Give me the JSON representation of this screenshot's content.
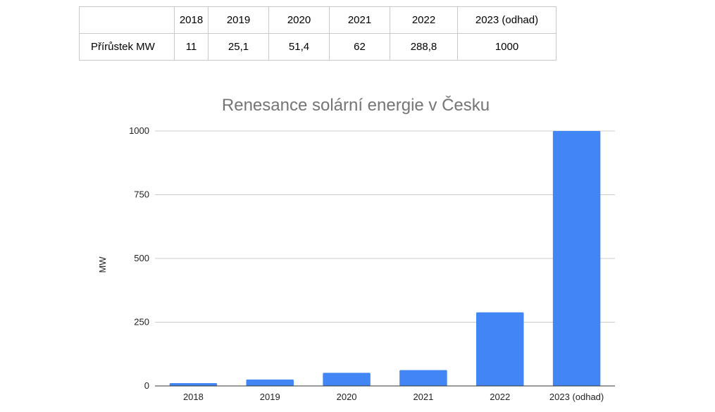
{
  "table": {
    "header": [
      "",
      "2018",
      "2019",
      "2020",
      "2021",
      "2022",
      "2023 (odhad)"
    ],
    "row_label": "Přírůstek MW",
    "row_values": [
      "11",
      "25,1",
      "51,4",
      "62",
      "288,8",
      "1000"
    ]
  },
  "chart_data": {
    "type": "bar",
    "title": "Renesance solární energie v Česku",
    "xlabel": "",
    "ylabel": "MW",
    "categories": [
      "2018",
      "2019",
      "2020",
      "2021",
      "2022",
      "2023 (odhad)"
    ],
    "values": [
      11,
      25.1,
      51.4,
      62,
      288.8,
      1000
    ],
    "ylim": [
      0,
      1000
    ],
    "yticks": [
      0,
      250,
      500,
      750,
      1000
    ],
    "grid": true,
    "legend": "none",
    "bar_color": "#4285f4",
    "grid_color": "#cccccc"
  }
}
